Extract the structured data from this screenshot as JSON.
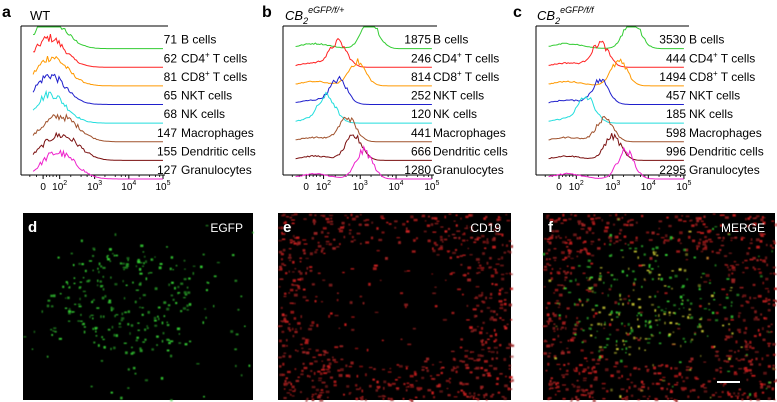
{
  "figure": {
    "panel_labels": [
      "a",
      "b",
      "c",
      "d",
      "e",
      "f"
    ],
    "flow_panels": [
      {
        "label": "a",
        "title": {
          "base": "WT",
          "sub": "",
          "sup": ""
        },
        "values": [
          "71",
          "62",
          "81",
          "65",
          "68",
          "147",
          "155",
          "127"
        ]
      },
      {
        "label": "b",
        "title": {
          "base": "CB",
          "sub": "2",
          "sup": "eGFP/f/+"
        },
        "values": [
          "1875",
          "246",
          "814",
          "252",
          "120",
          "441",
          "666",
          "1280"
        ]
      },
      {
        "label": "c",
        "title": {
          "base": "CB",
          "sub": "2",
          "sup": "eGFP/f/f"
        },
        "values": [
          "3530",
          "444",
          "1494",
          "457",
          "185",
          "598",
          "996",
          "2295"
        ]
      }
    ],
    "cell_types": [
      {
        "name": "B cells",
        "sup": "",
        "suffix": "",
        "color": "#33cc33"
      },
      {
        "name": "CD4",
        "sup": "+",
        "suffix": " T cells",
        "color": "#ff2222"
      },
      {
        "name": "CD8",
        "sup": "+",
        "suffix": " T cells",
        "color": "#ff9900"
      },
      {
        "name": "NKT cells",
        "sup": "",
        "suffix": "",
        "color": "#1f1fcc"
      },
      {
        "name": "NK cells",
        "sup": "",
        "suffix": "",
        "color": "#22dddd"
      },
      {
        "name": "Macrophages",
        "sup": "",
        "suffix": "",
        "color": "#a0522d"
      },
      {
        "name": "Dendritic cells",
        "sup": "",
        "suffix": "",
        "color": "#7a0f0f"
      },
      {
        "name": "Granulocytes",
        "sup": "",
        "suffix": "",
        "color": "#ee22cc"
      }
    ],
    "x_axis": {
      "scale": "logicle",
      "ticks": [
        {
          "text": "0",
          "exp": ""
        },
        {
          "text": "10",
          "exp": "2"
        },
        {
          "text": "10",
          "exp": "3"
        },
        {
          "text": "10",
          "exp": "4"
        },
        {
          "text": "10",
          "exp": "5"
        }
      ]
    },
    "images": [
      {
        "label": "d",
        "caption": "EGFP",
        "channel": "green"
      },
      {
        "label": "e",
        "caption": "CD19",
        "channel": "red"
      },
      {
        "label": "f",
        "caption": "MERGE",
        "channel": "merge"
      }
    ],
    "colors": {
      "green": "#33dd33",
      "red": "#dd2222",
      "background": "#000000",
      "axis": "#000000"
    }
  }
}
